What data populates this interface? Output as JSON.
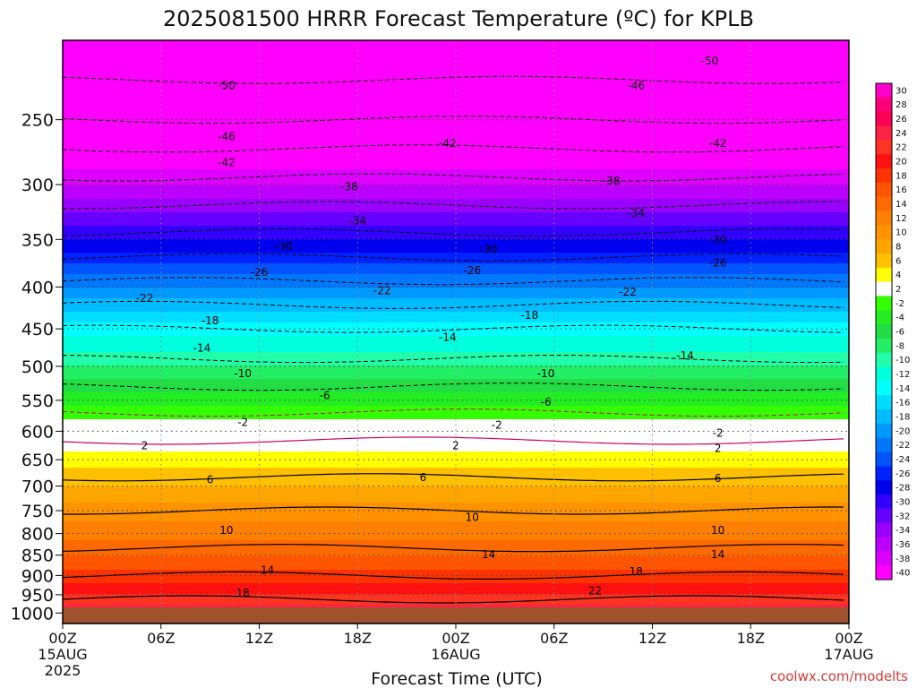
{
  "chart_data": {
    "type": "heatmap",
    "title": "2025081500 HRRR Forecast Temperature (ºC) for KPLB",
    "xlabel": "Forecast Time (UTC)",
    "ylabel": "",
    "y_scale": "log",
    "y_inverted": true,
    "y_ticks": [
      250,
      300,
      350,
      400,
      450,
      500,
      550,
      600,
      650,
      700,
      750,
      800,
      850,
      900,
      950,
      1000
    ],
    "y_range": [
      200,
      1030
    ],
    "x_range_hours": [
      0,
      48
    ],
    "x_ticks": [
      {
        "hour": 0,
        "label": "00Z",
        "sub1": "15AUG",
        "sub2": "2025"
      },
      {
        "hour": 6,
        "label": "06Z",
        "sub1": "",
        "sub2": ""
      },
      {
        "hour": 12,
        "label": "12Z",
        "sub1": "",
        "sub2": ""
      },
      {
        "hour": 18,
        "label": "18Z",
        "sub1": "",
        "sub2": ""
      },
      {
        "hour": 24,
        "label": "00Z",
        "sub1": "16AUG",
        "sub2": ""
      },
      {
        "hour": 30,
        "label": "06Z",
        "sub1": "",
        "sub2": ""
      },
      {
        "hour": 36,
        "label": "12Z",
        "sub1": "",
        "sub2": ""
      },
      {
        "hour": 42,
        "label": "18Z",
        "sub1": "",
        "sub2": ""
      },
      {
        "hour": 48,
        "label": "00Z",
        "sub1": "17AUG",
        "sub2": ""
      }
    ],
    "temperature_profile": [
      {
        "p": 200,
        "t": -54
      },
      {
        "p": 250,
        "t": -46
      },
      {
        "p": 300,
        "t": -37
      },
      {
        "p": 350,
        "t": -29
      },
      {
        "p": 400,
        "t": -21
      },
      {
        "p": 450,
        "t": -14
      },
      {
        "p": 500,
        "t": -9
      },
      {
        "p": 550,
        "t": -4
      },
      {
        "p": 600,
        "t": 1
      },
      {
        "p": 650,
        "t": 4
      },
      {
        "p": 700,
        "t": 7
      },
      {
        "p": 750,
        "t": 10
      },
      {
        "p": 800,
        "t": 12
      },
      {
        "p": 850,
        "t": 15
      },
      {
        "p": 900,
        "t": 18
      },
      {
        "p": 950,
        "t": 21
      },
      {
        "p": 1000,
        "t": 25
      }
    ],
    "grid": true,
    "colorbar": {
      "ticks": [
        "30",
        "28",
        "26",
        "24",
        "22",
        "20",
        "18",
        "16",
        "14",
        "12",
        "10",
        "8",
        "6",
        "4",
        "2",
        "-2",
        "-4",
        "-6",
        "-8",
        "-10",
        "-12",
        "-14",
        "-16",
        "-18",
        "-20",
        "-22",
        "-24",
        "-26",
        "-28",
        "-30",
        "-32",
        "-34",
        "-36",
        "-38",
        "-40"
      ],
      "colors": [
        "#ff00cc",
        "#ff0077",
        "#ff0055",
        "#ff2244",
        "#ff3322",
        "#ff1111",
        "#ff3300",
        "#ff5500",
        "#ff6a00",
        "#ff8000",
        "#ff9200",
        "#ffa500",
        "#ffc000",
        "#ffff00",
        "#ffffff",
        "#33ff00",
        "#22ee22",
        "#22dd44",
        "#22ee66",
        "#22ffaa",
        "#00ffdd",
        "#00ffff",
        "#00ddff",
        "#00bbff",
        "#0099ff",
        "#0077ff",
        "#0055ff",
        "#0022ff",
        "#0000ee",
        "#3300ff",
        "#6600ff",
        "#9900ff",
        "#bb00ff",
        "#dd00ff",
        "#ff00ff"
      ]
    },
    "contour_labels": [
      {
        "label": "-50",
        "hour": 10,
        "p": 227
      },
      {
        "label": "-50",
        "hour": 39.5,
        "p": 212
      },
      {
        "label": "-46",
        "hour": 10,
        "p": 262
      },
      {
        "label": "-46",
        "hour": 35,
        "p": 227
      },
      {
        "label": "-42",
        "hour": 10,
        "p": 282
      },
      {
        "label": "-42",
        "hour": 23.5,
        "p": 267
      },
      {
        "label": "-42",
        "hour": 40,
        "p": 267
      },
      {
        "label": "-38",
        "hour": 17.5,
        "p": 302
      },
      {
        "label": "-38",
        "hour": 33.5,
        "p": 297
      },
      {
        "label": "-34",
        "hour": 18,
        "p": 332
      },
      {
        "label": "-34",
        "hour": 35,
        "p": 325
      },
      {
        "label": "-30",
        "hour": 13.5,
        "p": 357
      },
      {
        "label": "-30",
        "hour": 26,
        "p": 360
      },
      {
        "label": "-30",
        "hour": 40,
        "p": 350
      },
      {
        "label": "-26",
        "hour": 12,
        "p": 384
      },
      {
        "label": "-26",
        "hour": 25,
        "p": 382
      },
      {
        "label": "-26",
        "hour": 40,
        "p": 374
      },
      {
        "label": "-22",
        "hour": 5,
        "p": 413
      },
      {
        "label": "-22",
        "hour": 19.5,
        "p": 404
      },
      {
        "label": "-22",
        "hour": 34.5,
        "p": 406
      },
      {
        "label": "-18",
        "hour": 9,
        "p": 440
      },
      {
        "label": "-18",
        "hour": 28.5,
        "p": 433
      },
      {
        "label": "-14",
        "hour": 8.5,
        "p": 475
      },
      {
        "label": "-14",
        "hour": 23.5,
        "p": 461
      },
      {
        "label": "-14",
        "hour": 38,
        "p": 485
      },
      {
        "label": "-10",
        "hour": 11,
        "p": 510
      },
      {
        "label": "-10",
        "hour": 29.5,
        "p": 510
      },
      {
        "label": "-6",
        "hour": 16,
        "p": 543
      },
      {
        "label": "-6",
        "hour": 29.5,
        "p": 553
      },
      {
        "label": "-2",
        "hour": 11,
        "p": 585
      },
      {
        "label": "-2",
        "hour": 26.5,
        "p": 590
      },
      {
        "label": "-2",
        "hour": 40,
        "p": 603
      },
      {
        "label": "2",
        "hour": 5,
        "p": 625
      },
      {
        "label": "2",
        "hour": 24,
        "p": 625
      },
      {
        "label": "2",
        "hour": 40,
        "p": 630
      },
      {
        "label": "6",
        "hour": 9,
        "p": 688
      },
      {
        "label": "6",
        "hour": 22,
        "p": 683
      },
      {
        "label": "6",
        "hour": 40,
        "p": 685
      },
      {
        "label": "10",
        "hour": 10,
        "p": 793
      },
      {
        "label": "10",
        "hour": 25,
        "p": 764
      },
      {
        "label": "10",
        "hour": 40,
        "p": 793
      },
      {
        "label": "14",
        "hour": 12.5,
        "p": 887
      },
      {
        "label": "14",
        "hour": 26,
        "p": 849
      },
      {
        "label": "14",
        "hour": 40,
        "p": 849
      },
      {
        "label": "18",
        "hour": 11,
        "p": 945
      },
      {
        "label": "18",
        "hour": 35,
        "p": 890
      },
      {
        "label": "22",
        "hour": 32.5,
        "p": 940
      }
    ]
  },
  "credit": "coolwx.com/modelts"
}
